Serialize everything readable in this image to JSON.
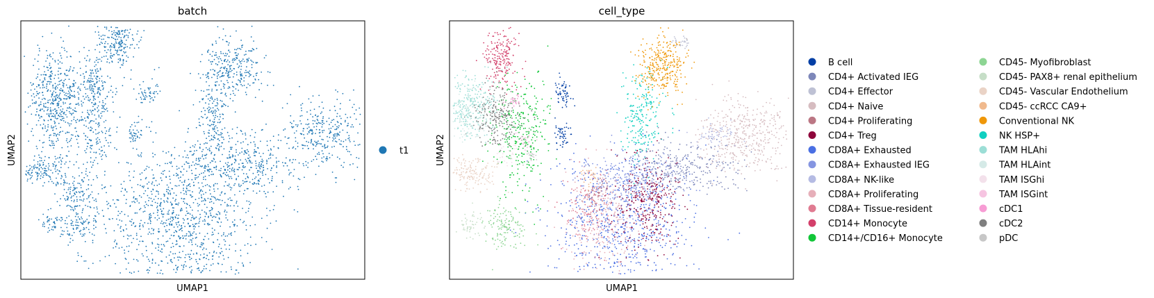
{
  "chart_data": [
    {
      "type": "scatter",
      "title": "batch",
      "xlabel": "UMAP1",
      "ylabel": "UMAP2",
      "ticks": "none",
      "legend_title": "",
      "legend_position": "right",
      "categories": [
        {
          "name": "t1",
          "color": "#1f77b4"
        }
      ]
    },
    {
      "type": "scatter",
      "title": "cell_type",
      "xlabel": "UMAP1",
      "ylabel": "UMAP2",
      "ticks": "none",
      "legend_position": "right",
      "legend_columns": 2,
      "categories": [
        {
          "name": "B cell",
          "color": "#023fa5"
        },
        {
          "name": "CD4+ Activated IEG",
          "color": "#7d87b9"
        },
        {
          "name": "CD4+ Effector",
          "color": "#bec1d4"
        },
        {
          "name": "CD4+ Naive",
          "color": "#d6bcc0"
        },
        {
          "name": "CD4+ Proliferating",
          "color": "#bb7784"
        },
        {
          "name": "CD4+ Treg",
          "color": "#8e063b"
        },
        {
          "name": "CD8A+ Exhausted",
          "color": "#4a6fe3"
        },
        {
          "name": "CD8A+ Exhausted IEG",
          "color": "#8595e1"
        },
        {
          "name": "CD8A+ NK-like",
          "color": "#b5bbe3"
        },
        {
          "name": "CD8A+ Proliferating",
          "color": "#e6afb9"
        },
        {
          "name": "CD8A+ Tissue-resident",
          "color": "#e07b91"
        },
        {
          "name": "CD14+ Monocyte",
          "color": "#d33f6a"
        },
        {
          "name": "CD14+/CD16+ Monocyte",
          "color": "#11c638"
        },
        {
          "name": "CD45- Myofibroblast",
          "color": "#8dd593"
        },
        {
          "name": "CD45- PAX8+ renal epithelium",
          "color": "#c6dec7"
        },
        {
          "name": "CD45- Vascular Endothelium",
          "color": "#ead3c6"
        },
        {
          "name": "CD45- ccRCC CA9+",
          "color": "#f0b98d"
        },
        {
          "name": "Conventional NK",
          "color": "#ef9708"
        },
        {
          "name": "NK HSP+",
          "color": "#0fcfc0"
        },
        {
          "name": "TAM HLAhi",
          "color": "#9cded6"
        },
        {
          "name": "TAM HLAint",
          "color": "#d5eae7"
        },
        {
          "name": "TAM ISGhi",
          "color": "#f3e1eb"
        },
        {
          "name": "TAM ISGint",
          "color": "#f6c4e1"
        },
        {
          "name": "cDC1",
          "color": "#f79cd4"
        },
        {
          "name": "cDC2",
          "color": "#7f7f7f"
        },
        {
          "name": "pDC",
          "color": "#c7c7c7"
        }
      ]
    }
  ]
}
